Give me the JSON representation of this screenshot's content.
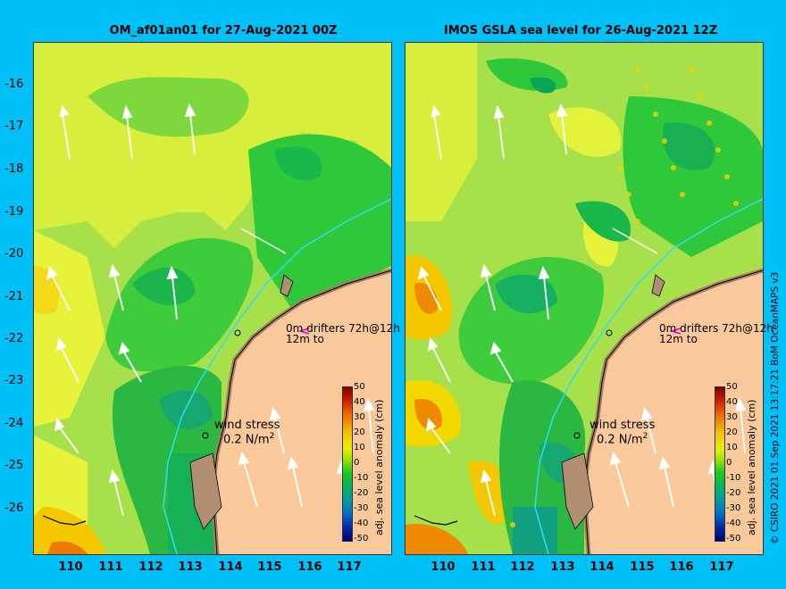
{
  "panels": [
    {
      "title": "OM_af01an01 for 27-Aug-2021 00Z"
    },
    {
      "title": "IMOS GSLA sea level  for 26-Aug-2021 12Z"
    }
  ],
  "y_ticks": [
    "-16",
    "-17",
    "-18",
    "-19",
    "-20",
    "-21",
    "-22",
    "-23",
    "-24",
    "-25",
    "-26"
  ],
  "x_ticks": [
    "110",
    "111",
    "112",
    "113",
    "114",
    "115",
    "116",
    "117"
  ],
  "drifters_line1": "0m drifters 72h@12h",
  "drifters_line2": "12m to",
  "wind_label": "wind stress",
  "wind_value": "0.2 N/m",
  "wind_exp": "2",
  "colorbar_title": "adj. sea level anomaly (cm)",
  "colorbar_ticks": [
    "50",
    "40",
    "30",
    "20",
    "10",
    "0",
    "-10",
    "-20",
    "-30",
    "-40",
    "-50"
  ],
  "credit": "© CSIRO 2021   01 Sep 2021 13:17:21 BoM OceanMAPS v3",
  "colors": {
    "background": "#00c0f8",
    "land": "#f9c99b",
    "coast": "#b09070"
  }
}
